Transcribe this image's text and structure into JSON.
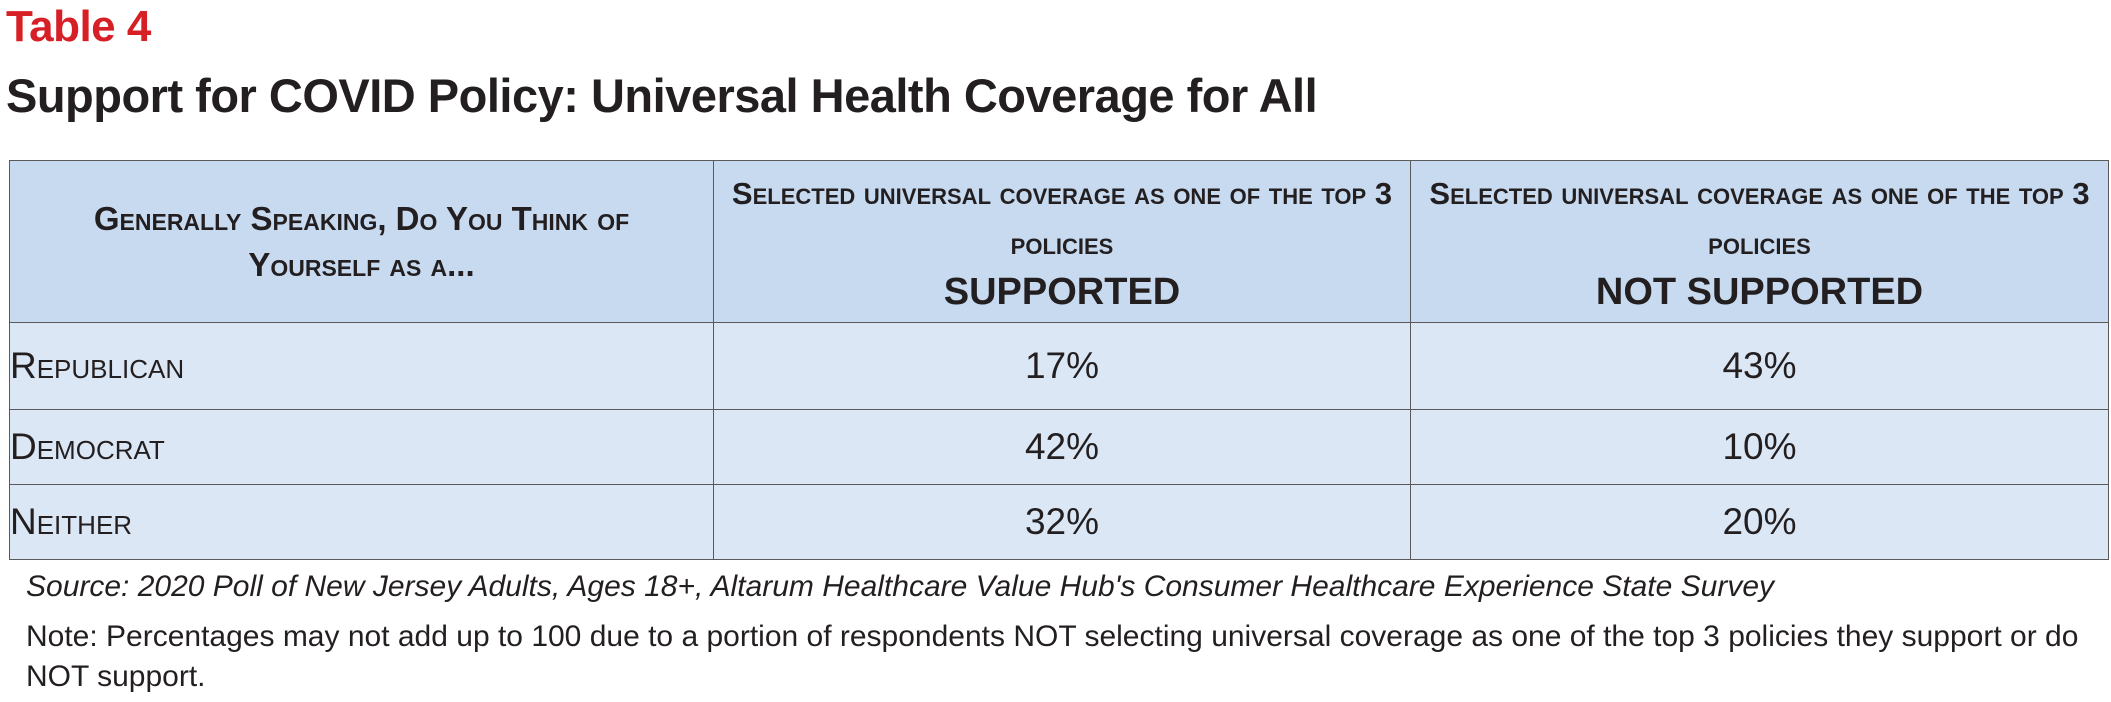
{
  "table_label": "Table 4",
  "title": "Support for COVID Policy: Universal Health Coverage for All",
  "table": {
    "headers": {
      "col1": "Generally Speaking, Do You Think of Yourself as a...",
      "col2_line1": "Selected universal coverage as one of the top 3 policies",
      "col2_line2": "SUPPORTED",
      "col3_line1": "Selected universal coverage as one of the top 3 policies",
      "col3_line2": "NOT SUPPORTED"
    },
    "rows": [
      {
        "party": "Republican",
        "supported": "17%",
        "not_supported": "43%"
      },
      {
        "party": "Democrat",
        "supported": "42%",
        "not_supported": "10%"
      },
      {
        "party": "Neither",
        "supported": "32%",
        "not_supported": "20%"
      }
    ]
  },
  "source": "Source: 2020 Poll of New Jersey Adults, Ages 18+, Altarum Healthcare Value Hub's Consumer Healthcare Experience State Survey",
  "note": "Note: Percentages may not add up to 100 due to a portion of respondents NOT selecting universal coverage as one of the top 3 policies they support or do NOT support.",
  "colors": {
    "label_red": "#d71f26",
    "header_bg": "#c7daf0",
    "row_bg": "#dbe7f5",
    "border": "#5a5a5a"
  }
}
